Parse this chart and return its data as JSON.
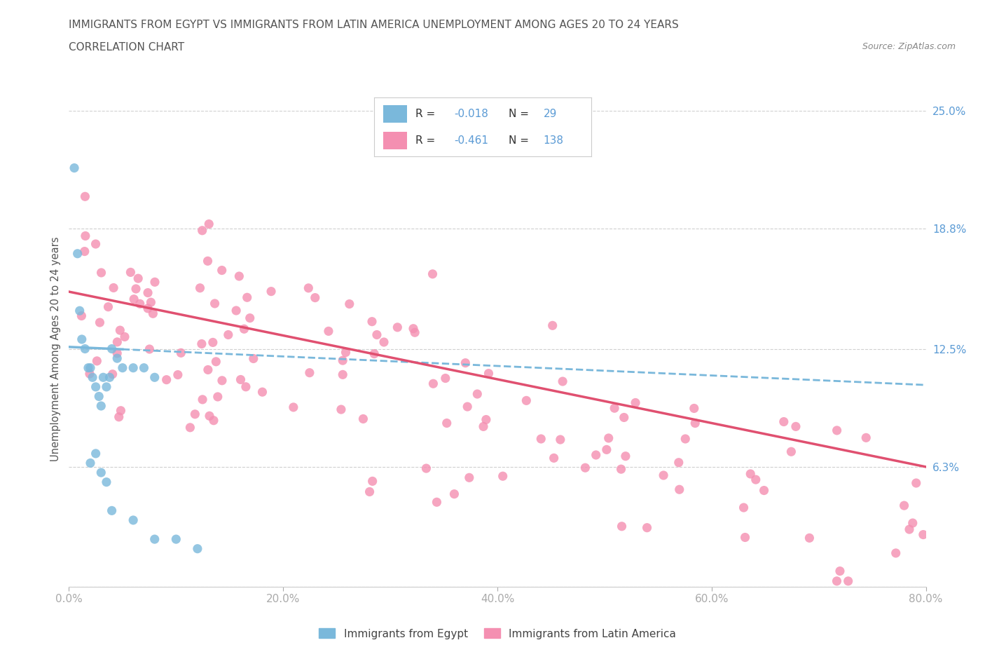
{
  "title_line1": "IMMIGRANTS FROM EGYPT VS IMMIGRANTS FROM LATIN AMERICA UNEMPLOYMENT AMONG AGES 20 TO 24 YEARS",
  "title_line2": "CORRELATION CHART",
  "source_text": "Source: ZipAtlas.com",
  "ylabel": "Unemployment Among Ages 20 to 24 years",
  "xmin": 0.0,
  "xmax": 0.8,
  "ymin": 0.0,
  "ymax": 0.25,
  "ytick_vals": [
    0.0,
    0.063,
    0.125,
    0.188,
    0.25
  ],
  "ytick_labels": [
    "",
    "6.3%",
    "12.5%",
    "18.8%",
    "25.0%"
  ],
  "xtick_vals": [
    0.0,
    0.2,
    0.4,
    0.6,
    0.8
  ],
  "xtick_labels": [
    "0.0%",
    "20.0%",
    "40.0%",
    "60.0%",
    "80.0%"
  ],
  "egypt_color": "#7ab8db",
  "latam_color": "#f48fb1",
  "latam_line_color": "#e05070",
  "egypt_R": -0.018,
  "egypt_N": 29,
  "latam_R": -0.461,
  "latam_N": 138,
  "egypt_label": "Immigrants from Egypt",
  "latam_label": "Immigrants from Latin America",
  "background_color": "#ffffff",
  "grid_color": "#d0d0d0",
  "tick_label_color": "#5b9bd5",
  "title_color": "#555555",
  "source_color": "#888888"
}
